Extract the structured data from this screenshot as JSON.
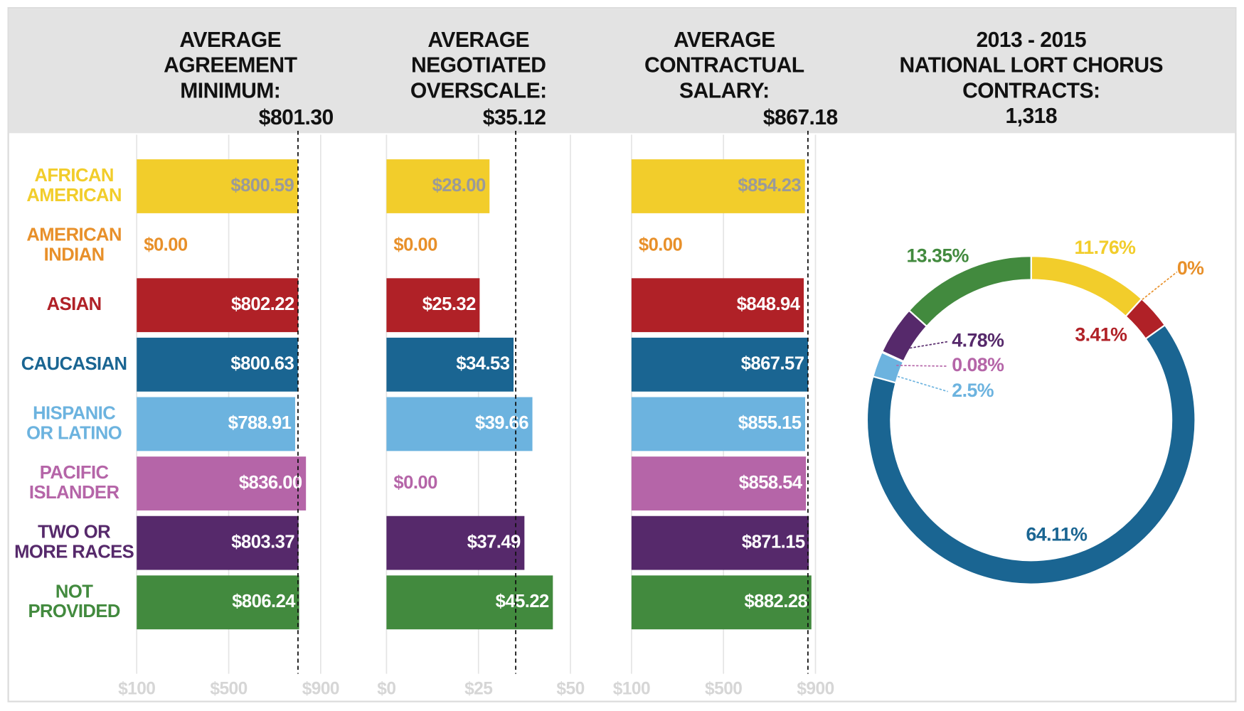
{
  "chart_data": [
    {
      "type": "bar",
      "orientation": "horizontal",
      "title": "AVERAGE\nAGREEMENT\nMINIMUM:",
      "reference": {
        "value": 801.3,
        "label": "$801.30"
      },
      "categories": [
        "AFRICAN\nAMERICAN",
        "AMERICAN\nINDIAN",
        "ASIAN",
        "CAUCASIAN",
        "HISPANIC\nOR LATINO",
        "PACIFIC\nISLANDER",
        "TWO OR\nMORE RACES",
        "NOT\nPROVIDED"
      ],
      "colors": [
        "#f2cd2b",
        "#e8902a",
        "#b02127",
        "#1a6592",
        "#6cb3df",
        "#b565a8",
        "#56296b",
        "#428a3e"
      ],
      "values": [
        800.59,
        0,
        802.22,
        800.63,
        788.91,
        836,
        803.37,
        806.24
      ],
      "value_labels": [
        "$800.59",
        "$0.00",
        "$802.22",
        "$800.63",
        "$788.91",
        "$836.00",
        "$803.37",
        "$806.24"
      ],
      "xlim": [
        100,
        900
      ],
      "xticks": [
        {
          "value": 100,
          "label": "$100"
        },
        {
          "value": 500,
          "label": "$500"
        },
        {
          "value": 900,
          "label": "$900"
        }
      ],
      "grid": true
    },
    {
      "type": "bar",
      "orientation": "horizontal",
      "title": "AVERAGE\nNEGOTIATED\nOVERSCALE:",
      "reference": {
        "value": 35.12,
        "label": "$35.12"
      },
      "values": [
        28,
        0,
        25.32,
        34.53,
        39.66,
        0,
        37.49,
        45.22
      ],
      "value_labels": [
        "$28.00",
        "$0.00",
        "$25.32",
        "$34.53",
        "$39.66",
        "$0.00",
        "$37.49",
        "$45.22"
      ],
      "xlim": [
        0,
        50
      ],
      "xticks": [
        {
          "value": 0,
          "label": "$0"
        },
        {
          "value": 25,
          "label": "$25"
        },
        {
          "value": 50,
          "label": "$50"
        }
      ],
      "grid": true
    },
    {
      "type": "bar",
      "orientation": "horizontal",
      "title": "AVERAGE\nCONTRACTUAL\nSALARY:",
      "reference": {
        "value": 867.18,
        "label": "$867.18"
      },
      "values": [
        854.23,
        0,
        848.94,
        867.57,
        855.15,
        858.54,
        871.15,
        882.28
      ],
      "value_labels": [
        "$854.23",
        "$0.00",
        "$848.94",
        "$867.57",
        "$855.15",
        "$858.54",
        "$871.15",
        "$882.28"
      ],
      "xlim": [
        100,
        900
      ],
      "xticks": [
        {
          "value": 100,
          "label": "$100"
        },
        {
          "value": 500,
          "label": "$500"
        },
        {
          "value": 900,
          "label": "$900"
        }
      ],
      "grid": true
    },
    {
      "type": "donut",
      "title": "2013 - 2015\nNATIONAL LORT CHORUS\nCONTRACTS:",
      "subtitle": "1,318",
      "values": [
        11.76,
        0,
        3.41,
        64.11,
        2.5,
        0.08,
        4.78,
        13.35
      ],
      "value_labels": [
        "11.76%",
        "0%",
        "3.41%",
        "64.11%",
        "2.5%",
        "0.08%",
        "4.78%",
        "13.35%"
      ]
    }
  ]
}
